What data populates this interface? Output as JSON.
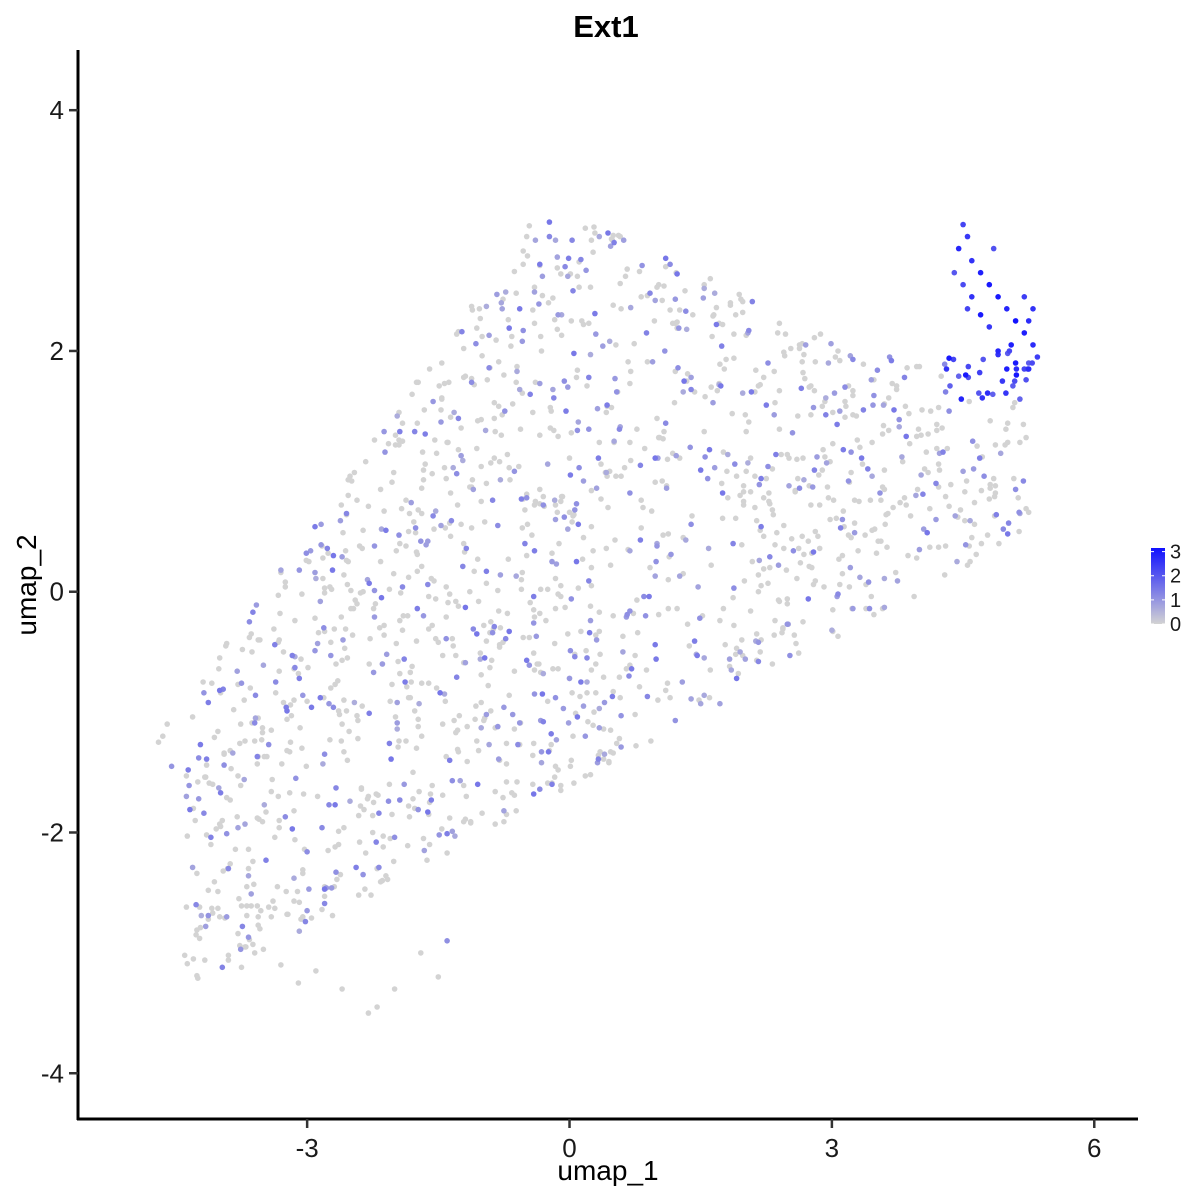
{
  "chart_data": {
    "type": "scatter",
    "title": "Ext1",
    "xlabel": "umap_1",
    "ylabel": "umap_2",
    "xlim": [
      -5.62,
      6.5
    ],
    "ylim": [
      -4.38,
      4.5
    ],
    "x_ticks": [
      -3,
      0,
      3,
      6
    ],
    "y_ticks": [
      -4,
      -2,
      0,
      2,
      4
    ],
    "x_tick_labels": [
      "-3",
      "0",
      "3",
      "6"
    ],
    "y_tick_labels": [
      "-4",
      "-2",
      "0",
      "2",
      "4"
    ],
    "grid": false,
    "legend": {
      "position": "right",
      "type": "colorbar",
      "breaks": [
        0,
        1,
        2,
        3
      ],
      "break_labels": [
        "0",
        "1",
        "2",
        "3"
      ],
      "low_color": "#d3d3d3",
      "high_color": "#1010ff",
      "range": [
        0,
        3.15
      ]
    },
    "point_count_note": "approximate reconstruction of ~1800 cells",
    "points": [
      [
        -4.7,
        -1.25,
        0
      ],
      [
        -4.65,
        -1.2,
        0
      ],
      [
        -4.6,
        -1.1,
        0
      ],
      [
        -4.55,
        -1.45,
        1.0
      ],
      [
        -4.3,
        -1.8,
        0
      ],
      [
        -4.1,
        -2.1,
        0
      ],
      [
        -4.0,
        -2.7,
        0
      ],
      [
        -3.9,
        -2.3,
        1.2
      ],
      [
        -3.7,
        -2.95,
        0
      ],
      [
        -3.6,
        -3.0,
        0
      ],
      [
        -3.3,
        -3.1,
        0
      ],
      [
        -3.1,
        -3.25,
        0
      ],
      [
        -2.9,
        -3.15,
        0
      ],
      [
        -2.6,
        -3.3,
        0
      ],
      [
        -2.3,
        -3.5,
        0
      ],
      [
        -2.2,
        -3.45,
        0
      ],
      [
        -2.0,
        -3.3,
        0
      ],
      [
        -1.7,
        -3.0,
        0
      ],
      [
        -1.5,
        -3.2,
        0
      ],
      [
        -1.4,
        -2.9,
        1.1
      ],
      [
        4.5,
        3.05,
        2.3
      ],
      [
        4.55,
        2.95,
        2.5
      ],
      [
        4.45,
        2.85,
        2.8
      ],
      [
        4.6,
        2.75,
        2.6
      ],
      [
        4.7,
        2.65,
        2.9
      ],
      [
        4.8,
        2.55,
        3.0
      ],
      [
        4.9,
        2.45,
        3.0
      ],
      [
        5.0,
        2.35,
        2.8
      ],
      [
        5.1,
        2.25,
        3.1
      ],
      [
        5.2,
        2.15,
        2.9
      ],
      [
        5.3,
        2.05,
        2.7
      ],
      [
        5.35,
        1.95,
        2.4
      ],
      [
        5.0,
        1.85,
        2.9
      ],
      [
        5.1,
        1.9,
        3.0
      ],
      [
        4.9,
        2.0,
        2.8
      ],
      [
        4.8,
        2.2,
        2.5
      ],
      [
        4.7,
        2.3,
        3.0
      ],
      [
        4.6,
        2.45,
        2.6
      ],
      [
        4.5,
        2.55,
        2.2
      ],
      [
        4.4,
        2.65,
        2.0
      ],
      [
        5.2,
        2.45,
        2.4
      ],
      [
        5.3,
        2.35,
        2.6
      ],
      [
        4.85,
        2.85,
        2.1
      ],
      [
        5.05,
        2.05,
        2.9
      ],
      [
        5.15,
        1.6,
        1.8
      ],
      [
        4.95,
        1.75,
        2.5
      ],
      [
        5.25,
        2.25,
        2.7
      ],
      [
        4.55,
        2.35,
        2.3
      ]
    ]
  }
}
